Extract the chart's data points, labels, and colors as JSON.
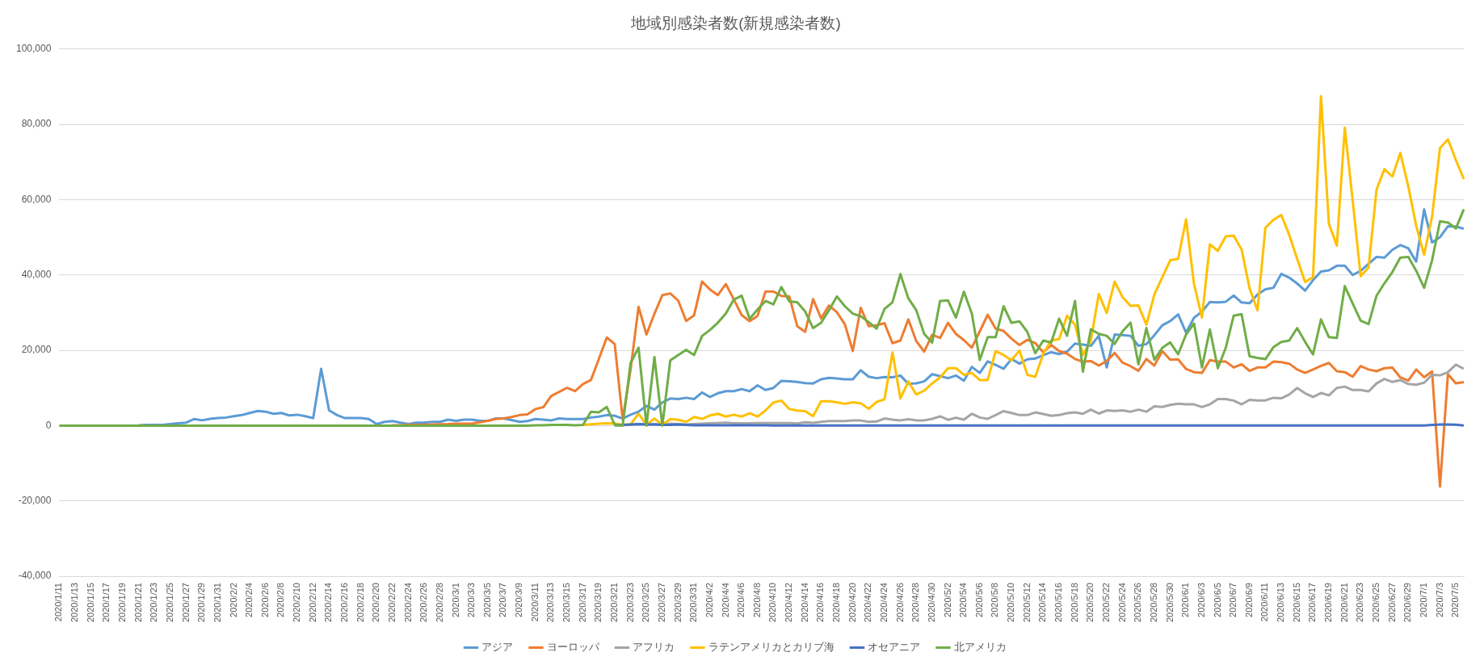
{
  "chart_data": {
    "type": "line",
    "title": "地域別感染者数(新規感染者数)",
    "categories": [
      "2020/1/11",
      null,
      "2020/1/13",
      null,
      "2020/1/15",
      null,
      "2020/1/17",
      null,
      "2020/1/19",
      null,
      "2020/1/21",
      null,
      "2020/1/23",
      null,
      "2020/1/25",
      null,
      "2020/1/27",
      null,
      "2020/1/29",
      null,
      "2020/1/31",
      null,
      "2020/2/2",
      null,
      "2020/2/4",
      null,
      "2020/2/6",
      null,
      "2020/2/8",
      null,
      "2020/2/10",
      null,
      "2020/2/12",
      null,
      "2020/2/14",
      null,
      "2020/2/16",
      null,
      "2020/2/18",
      null,
      "2020/2/20",
      null,
      "2020/2/22",
      null,
      "2020/2/24",
      null,
      "2020/2/26",
      null,
      "2020/2/28",
      null,
      "2020/3/1",
      null,
      "2020/3/3",
      null,
      "2020/3/5",
      null,
      "2020/3/7",
      null,
      "2020/3/9",
      null,
      "2020/3/11",
      null,
      "2020/3/13",
      null,
      "2020/3/15",
      null,
      "2020/3/17",
      null,
      "2020/3/19",
      null,
      "2020/3/21",
      null,
      "2020/3/23",
      null,
      "2020/3/25",
      null,
      "2020/3/27",
      null,
      "2020/3/29",
      null,
      "2020/3/31",
      null,
      "2020/4/2",
      null,
      "2020/4/4",
      null,
      "2020/4/6",
      null,
      "2020/4/8",
      null,
      "2020/4/10",
      null,
      "2020/4/12",
      null,
      "2020/4/14",
      null,
      "2020/4/16",
      null,
      "2020/4/18",
      null,
      "2020/4/20",
      null,
      "2020/4/22",
      null,
      "2020/4/24",
      null,
      "2020/4/26",
      null,
      "2020/4/28",
      null,
      "2020/4/30",
      null,
      "2020/5/2",
      null,
      "2020/5/4",
      null,
      "2020/5/6",
      null,
      "2020/5/8",
      null,
      "2020/5/10",
      null,
      "2020/5/12",
      null,
      "2020/5/14",
      null,
      "2020/5/16",
      null,
      "2020/5/18",
      null,
      "2020/5/20",
      null,
      "2020/5/22",
      null,
      "2020/5/24",
      null,
      "2020/5/26",
      null,
      "2020/5/28",
      null,
      "2020/5/30",
      null,
      "2020/6/1",
      null,
      "2020/6/3",
      null,
      "2020/6/5",
      null,
      "2020/6/7",
      null,
      "2020/6/9",
      null,
      "2020/6/11",
      null,
      "2020/6/13",
      null,
      "2020/6/15",
      null,
      "2020/6/17",
      null,
      "2020/6/19",
      null,
      "2020/6/21",
      null,
      "2020/6/23",
      null,
      "2020/6/25",
      null,
      "2020/6/27",
      null,
      "2020/6/29",
      null,
      "2020/7/1",
      null,
      "2020/7/3",
      null,
      "2020/7/5",
      null
    ],
    "series": [
      {
        "name": "アジア",
        "color": "#5b9bd5",
        "values": [
          null,
          null,
          null,
          null,
          null,
          null,
          null,
          null,
          null,
          null,
          100,
          200,
          200,
          200,
          400,
          600,
          800,
          1750,
          1400,
          1800,
          2000,
          2150,
          2500,
          2800,
          3350,
          3900,
          3700,
          3150,
          3350,
          2700,
          2900,
          2500,
          2000,
          15100,
          4050,
          2800,
          2000,
          2000,
          2000,
          1750,
          400,
          1000,
          1200,
          800,
          400,
          800,
          800,
          1000,
          1000,
          1600,
          1250,
          1600,
          1600,
          1250,
          1250,
          1900,
          1900,
          1500,
          1000,
          1200,
          1750,
          1600,
          1400,
          1900,
          1750,
          1750,
          1750,
          2150,
          2400,
          2800,
          2600,
          1900,
          2900,
          3700,
          5250,
          4250,
          6150,
          7200,
          7050,
          7400,
          7050,
          8800,
          7600,
          8600,
          9150,
          9150,
          9700,
          9150,
          10700,
          9450,
          10000,
          11900,
          11750,
          11600,
          11300,
          11200,
          12300,
          12700,
          12500,
          12300,
          12300,
          14700,
          13000,
          12600,
          12900,
          12850,
          13300,
          11100,
          11250,
          11750,
          13650,
          13150,
          12600,
          13300,
          11950,
          15600,
          14000,
          17050,
          16150,
          15100,
          17700,
          16450,
          17600,
          17800,
          18700,
          19500,
          19000,
          19650,
          21800,
          21500,
          21200,
          23850,
          15450,
          24200,
          24050,
          23850,
          21200,
          21650,
          24000,
          26650,
          27750,
          29550,
          24700,
          28650,
          30250,
          32850,
          32700,
          32900,
          34550,
          32700,
          32500,
          34800,
          36200,
          36600,
          40300,
          39300,
          37750,
          35850,
          38650,
          40900,
          41250,
          42450,
          42450,
          40000,
          41100,
          43000,
          44800,
          44600,
          46700,
          47950,
          47100,
          43550,
          57400,
          48650,
          50050,
          52950,
          52850,
          52300
        ]
      },
      {
        "name": "ヨーロッパ",
        "color": "#ed7d31",
        "values": [
          null,
          null,
          null,
          null,
          null,
          null,
          null,
          null,
          null,
          null,
          null,
          null,
          null,
          null,
          null,
          null,
          null,
          null,
          null,
          null,
          null,
          null,
          null,
          null,
          null,
          null,
          null,
          null,
          null,
          null,
          null,
          null,
          null,
          null,
          null,
          null,
          null,
          null,
          null,
          null,
          null,
          null,
          100,
          100,
          200,
          200,
          200,
          300,
          350,
          400,
          500,
          500,
          500,
          900,
          1250,
          1750,
          1900,
          2300,
          2800,
          3000,
          4400,
          4900,
          7900,
          8950,
          10050,
          9150,
          11050,
          12100,
          17700,
          23400,
          21650,
          1600,
          15000,
          31550,
          24200,
          29700,
          34650,
          35100,
          33200,
          27800,
          29300,
          38250,
          36150,
          34650,
          37600,
          33550,
          29350,
          27750,
          29150,
          35600,
          35600,
          34450,
          34300,
          26400,
          24900,
          33600,
          28500,
          31900,
          30100,
          26900,
          19800,
          31300,
          26400,
          26650,
          27200,
          21900,
          22600,
          28200,
          22450,
          19650,
          24100,
          23300,
          27300,
          24350,
          22700,
          20700,
          25000,
          29450,
          25750,
          25150,
          23100,
          21400,
          22800,
          21900,
          19500,
          21400,
          19800,
          19100,
          17700,
          17000,
          17150,
          15950,
          17150,
          19300,
          16700,
          15800,
          14550,
          17700,
          15950,
          19800,
          17500,
          17600,
          15050,
          14200,
          14000,
          17400,
          17000,
          17000,
          15450,
          16300,
          14550,
          15450,
          15450,
          17000,
          16850,
          16450,
          14900,
          14000,
          14900,
          15850,
          16650,
          14450,
          14200,
          13000,
          15800,
          14900,
          14450,
          15250,
          15400,
          12800,
          11950,
          14900,
          12850,
          14400,
          -16200,
          13650,
          11250,
          11550
        ]
      },
      {
        "name": "アフリカ",
        "color": "#a5a5a5",
        "values": [
          null,
          null,
          null,
          null,
          null,
          null,
          null,
          null,
          null,
          null,
          null,
          null,
          null,
          null,
          null,
          null,
          null,
          null,
          null,
          null,
          null,
          null,
          null,
          null,
          null,
          null,
          null,
          null,
          null,
          null,
          null,
          null,
          null,
          null,
          null,
          null,
          null,
          null,
          null,
          null,
          null,
          null,
          null,
          null,
          null,
          null,
          null,
          null,
          null,
          null,
          null,
          null,
          null,
          null,
          null,
          null,
          null,
          null,
          null,
          null,
          null,
          null,
          null,
          null,
          null,
          null,
          null,
          null,
          null,
          null,
          100,
          150,
          200,
          400,
          300,
          400,
          300,
          500,
          400,
          300,
          400,
          500,
          600,
          700,
          800,
          600,
          600,
          600,
          700,
          700,
          700,
          700,
          700,
          550,
          900,
          750,
          1000,
          1200,
          1200,
          1200,
          1350,
          1350,
          1000,
          1100,
          1900,
          1600,
          1400,
          1700,
          1400,
          1400,
          1800,
          2450,
          1550,
          2100,
          1600,
          3150,
          2150,
          1800,
          2800,
          3850,
          3350,
          2800,
          2800,
          3500,
          3100,
          2600,
          2800,
          3300,
          3500,
          3150,
          4250,
          3200,
          4050,
          3900,
          4050,
          3700,
          4250,
          3700,
          5100,
          4950,
          5500,
          5800,
          5650,
          5650,
          4950,
          5650,
          7050,
          7050,
          6650,
          5650,
          6850,
          6700,
          6700,
          7400,
          7250,
          8250,
          10000,
          8600,
          7600,
          8650,
          8050,
          10000,
          10350,
          9450,
          9450,
          9100,
          11200,
          12400,
          11600,
          12100,
          11050,
          10850,
          11400,
          13500,
          13350,
          14200,
          16200,
          15100
        ]
      },
      {
        "name": "ラテンアメリカとカリブ海",
        "color": "#ffc000",
        "values": [
          null,
          null,
          null,
          null,
          null,
          null,
          null,
          null,
          null,
          null,
          null,
          null,
          null,
          null,
          null,
          null,
          null,
          null,
          null,
          null,
          null,
          null,
          null,
          null,
          null,
          null,
          null,
          null,
          null,
          null,
          null,
          null,
          null,
          null,
          null,
          null,
          null,
          null,
          null,
          null,
          null,
          null,
          null,
          null,
          null,
          null,
          null,
          null,
          null,
          null,
          null,
          null,
          null,
          null,
          null,
          null,
          null,
          null,
          null,
          null,
          null,
          null,
          null,
          null,
          null,
          null,
          200,
          350,
          500,
          600,
          550,
          200,
          350,
          3150,
          200,
          1900,
          200,
          1750,
          1550,
          1000,
          2300,
          1800,
          2700,
          3150,
          2400,
          2900,
          2400,
          3300,
          2400,
          4050,
          6150,
          6650,
          4400,
          4000,
          3850,
          2500,
          6450,
          6450,
          6200,
          5800,
          6200,
          5950,
          4450,
          6300,
          7000,
          19450,
          7200,
          11750,
          8250,
          9300,
          11200,
          12800,
          15250,
          15250,
          13500,
          14000,
          12100,
          12100,
          19800,
          18750,
          17350,
          19950,
          13500,
          12950,
          19100,
          22600,
          22950,
          29200,
          26800,
          18750,
          22600,
          34950,
          29900,
          38250,
          34100,
          31800,
          31900,
          26800,
          34800,
          39400,
          43900,
          44300,
          54800,
          37650,
          28700,
          48150,
          46400,
          50250,
          50450,
          46750,
          36450,
          30650,
          52550,
          54650,
          55950,
          50650,
          44300,
          38150,
          39400,
          87500,
          53550,
          47800,
          79100,
          59700,
          39700,
          42000,
          62650,
          68100,
          66150,
          72450,
          63550,
          53050,
          45350,
          55500,
          73700,
          76000,
          70550,
          65450
        ]
      },
      {
        "name": "オセアニア",
        "color": "#4472c4",
        "values": [
          null,
          null,
          null,
          null,
          null,
          null,
          null,
          null,
          null,
          null,
          null,
          null,
          null,
          null,
          null,
          null,
          null,
          null,
          null,
          null,
          null,
          null,
          null,
          null,
          null,
          null,
          null,
          null,
          null,
          null,
          null,
          null,
          null,
          null,
          null,
          null,
          null,
          null,
          null,
          null,
          null,
          null,
          null,
          null,
          null,
          null,
          null,
          null,
          null,
          null,
          null,
          null,
          null,
          null,
          null,
          null,
          null,
          null,
          null,
          null,
          null,
          null,
          null,
          null,
          null,
          null,
          null,
          null,
          null,
          null,
          100,
          200,
          300,
          400,
          300,
          300,
          200,
          200,
          300,
          200,
          100,
          100,
          100,
          100,
          100,
          100,
          100,
          100,
          100,
          100,
          50,
          50,
          50,
          50,
          50,
          50,
          50,
          50,
          50,
          50,
          20,
          20,
          20,
          20,
          20,
          20,
          20,
          20,
          20,
          20,
          20,
          20,
          20,
          20,
          20,
          20,
          20,
          20,
          20,
          20,
          20,
          20,
          20,
          20,
          20,
          20,
          20,
          20,
          20,
          20,
          20,
          20,
          20,
          20,
          20,
          20,
          20,
          20,
          20,
          20,
          20,
          20,
          20,
          20,
          20,
          20,
          20,
          20,
          20,
          20,
          20,
          20,
          20,
          20,
          20,
          20,
          20,
          20,
          20,
          20,
          20,
          20,
          20,
          20,
          20,
          20,
          20,
          20,
          20,
          20,
          20,
          20,
          50,
          200,
          300,
          300,
          250,
          50
        ]
      },
      {
        "name": "北アメリカ",
        "color": "#70ad47",
        "values": [
          0,
          0,
          0,
          0,
          0,
          0,
          0,
          0,
          0,
          0,
          0,
          0,
          0,
          0,
          0,
          0,
          0,
          0,
          0,
          0,
          0,
          0,
          0,
          0,
          0,
          0,
          0,
          0,
          0,
          0,
          0,
          0,
          0,
          0,
          0,
          0,
          0,
          0,
          0,
          0,
          0,
          0,
          0,
          0,
          0,
          0,
          0,
          0,
          0,
          0,
          0,
          0,
          0,
          0,
          0,
          0,
          0,
          0,
          0,
          0,
          100,
          100,
          200,
          200,
          200,
          100,
          200,
          3700,
          3500,
          4950,
          200,
          0,
          16650,
          20700,
          0,
          18200,
          0,
          17350,
          18750,
          20150,
          18750,
          23800,
          25400,
          27350,
          29750,
          33450,
          34500,
          28400,
          30850,
          33100,
          32200,
          36800,
          33000,
          32750,
          30300,
          25900,
          27300,
          30650,
          34300,
          31700,
          29750,
          29050,
          27500,
          25750,
          31000,
          32750,
          40250,
          33800,
          30650,
          24350,
          22050,
          33100,
          33250,
          28700,
          35550,
          29750,
          17450,
          23500,
          23500,
          31700,
          27300,
          27700,
          24850,
          19250,
          22600,
          22050,
          28400,
          23850,
          33100,
          14350,
          25600,
          24350,
          23850,
          21700,
          25050,
          27350,
          16300,
          25900,
          17500,
          20650,
          22100,
          18950,
          24200,
          27100,
          15450,
          25550,
          15250,
          20650,
          29200,
          29600,
          18400,
          18000,
          17650,
          20800,
          22200,
          22600,
          25900,
          22250,
          18900,
          28200,
          23500,
          23300,
          37050,
          32400,
          27850,
          26950,
          34500,
          37800,
          40800,
          44600,
          44800,
          41150,
          36600,
          43900,
          54250,
          53950,
          52350,
          57450
        ]
      }
    ],
    "ylim": [
      -40000,
      100000
    ],
    "yticks": [
      {
        "value": -40000,
        "label": "-40,000"
      },
      {
        "value": -20000,
        "label": "-20,000"
      },
      {
        "value": 0,
        "label": "0"
      },
      {
        "value": 20000,
        "label": "20,000"
      },
      {
        "value": 40000,
        "label": "40,000"
      },
      {
        "value": 60000,
        "label": "60,000"
      },
      {
        "value": 80000,
        "label": "80,000"
      },
      {
        "value": 100000,
        "label": "100,000"
      }
    ],
    "grid": "y",
    "legend": "bottom",
    "marker": "none",
    "line_style": "solid"
  }
}
